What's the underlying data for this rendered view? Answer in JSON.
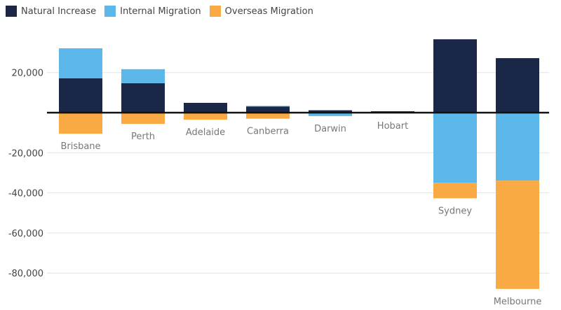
{
  "chart_data": {
    "type": "bar",
    "stacked": true,
    "title": "",
    "xlabel": "",
    "ylabel": "",
    "ylim": [
      -98000,
      40000
    ],
    "yticks": [
      20000,
      -20000,
      -40000,
      -60000,
      -80000
    ],
    "ytick_labels": [
      "20,000",
      "-20,000",
      "-40,000",
      "-60,000",
      "-80,000"
    ],
    "grid": true,
    "legend_position": "top-left",
    "categories": [
      "Brisbane",
      "Perth",
      "Adelaide",
      "Canberra",
      "Darwin",
      "Hobart",
      "Sydney",
      "Melbourne"
    ],
    "series": [
      {
        "name": "Natural Increase",
        "color": "#1a2748",
        "values": [
          17100,
          14700,
          4900,
          3100,
          1200,
          700,
          36600,
          27200
        ]
      },
      {
        "name": "Internal Migration",
        "color": "#5cb8ea",
        "values": [
          15000,
          7000,
          0,
          300,
          -1700,
          -300,
          -35000,
          -33900
        ]
      },
      {
        "name": "Overseas Migration",
        "color": "#f9aa44",
        "values": [
          -10500,
          -5600,
          -3500,
          -3000,
          0,
          0,
          -7700,
          -54000
        ]
      }
    ]
  }
}
